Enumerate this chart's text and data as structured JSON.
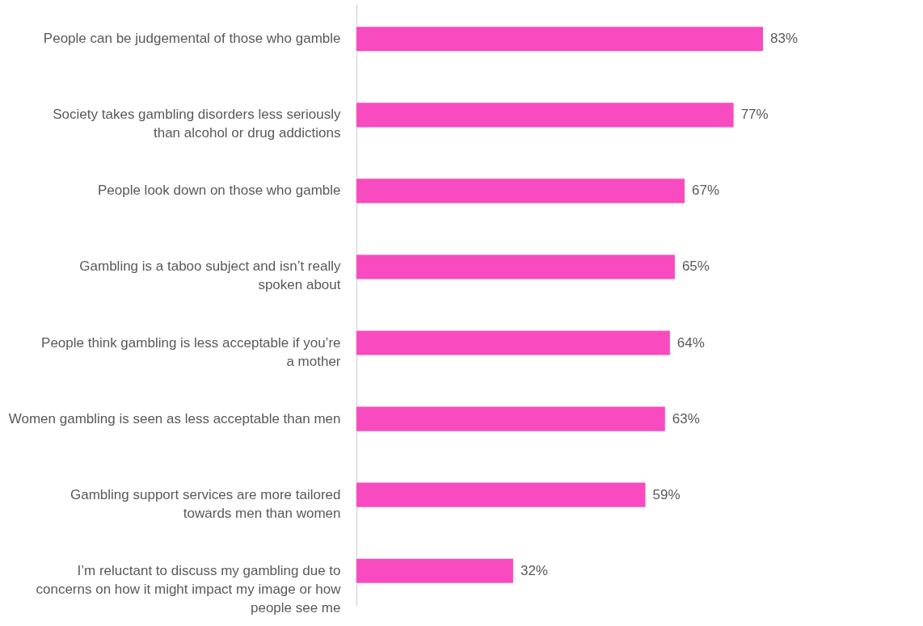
{
  "chart_data": {
    "type": "bar",
    "orientation": "horizontal",
    "tick_labels": "y",
    "grid": false,
    "categories": [
      "People can be judgemental of those who gamble",
      "Society takes gambling disorders less seriously than alcohol or drug addictions",
      "People look down on those who gamble",
      "Gambling is a taboo subject and isn’t really spoken about",
      "People think gambling is less acceptable if you’re a mother",
      "Women gambling is seen as less acceptable than men",
      "Gambling support services are more tailored towards men than women",
      "I’m reluctant to discuss my gambling due to concerns on how it might impact my image or how people see me"
    ],
    "values": [
      83,
      77,
      67,
      65,
      64,
      63,
      59,
      32
    ],
    "value_labels": [
      "83%",
      "77%",
      "67%",
      "65%",
      "64%",
      "63%",
      "59%",
      "32%"
    ],
    "color": "#f84bbf"
  }
}
